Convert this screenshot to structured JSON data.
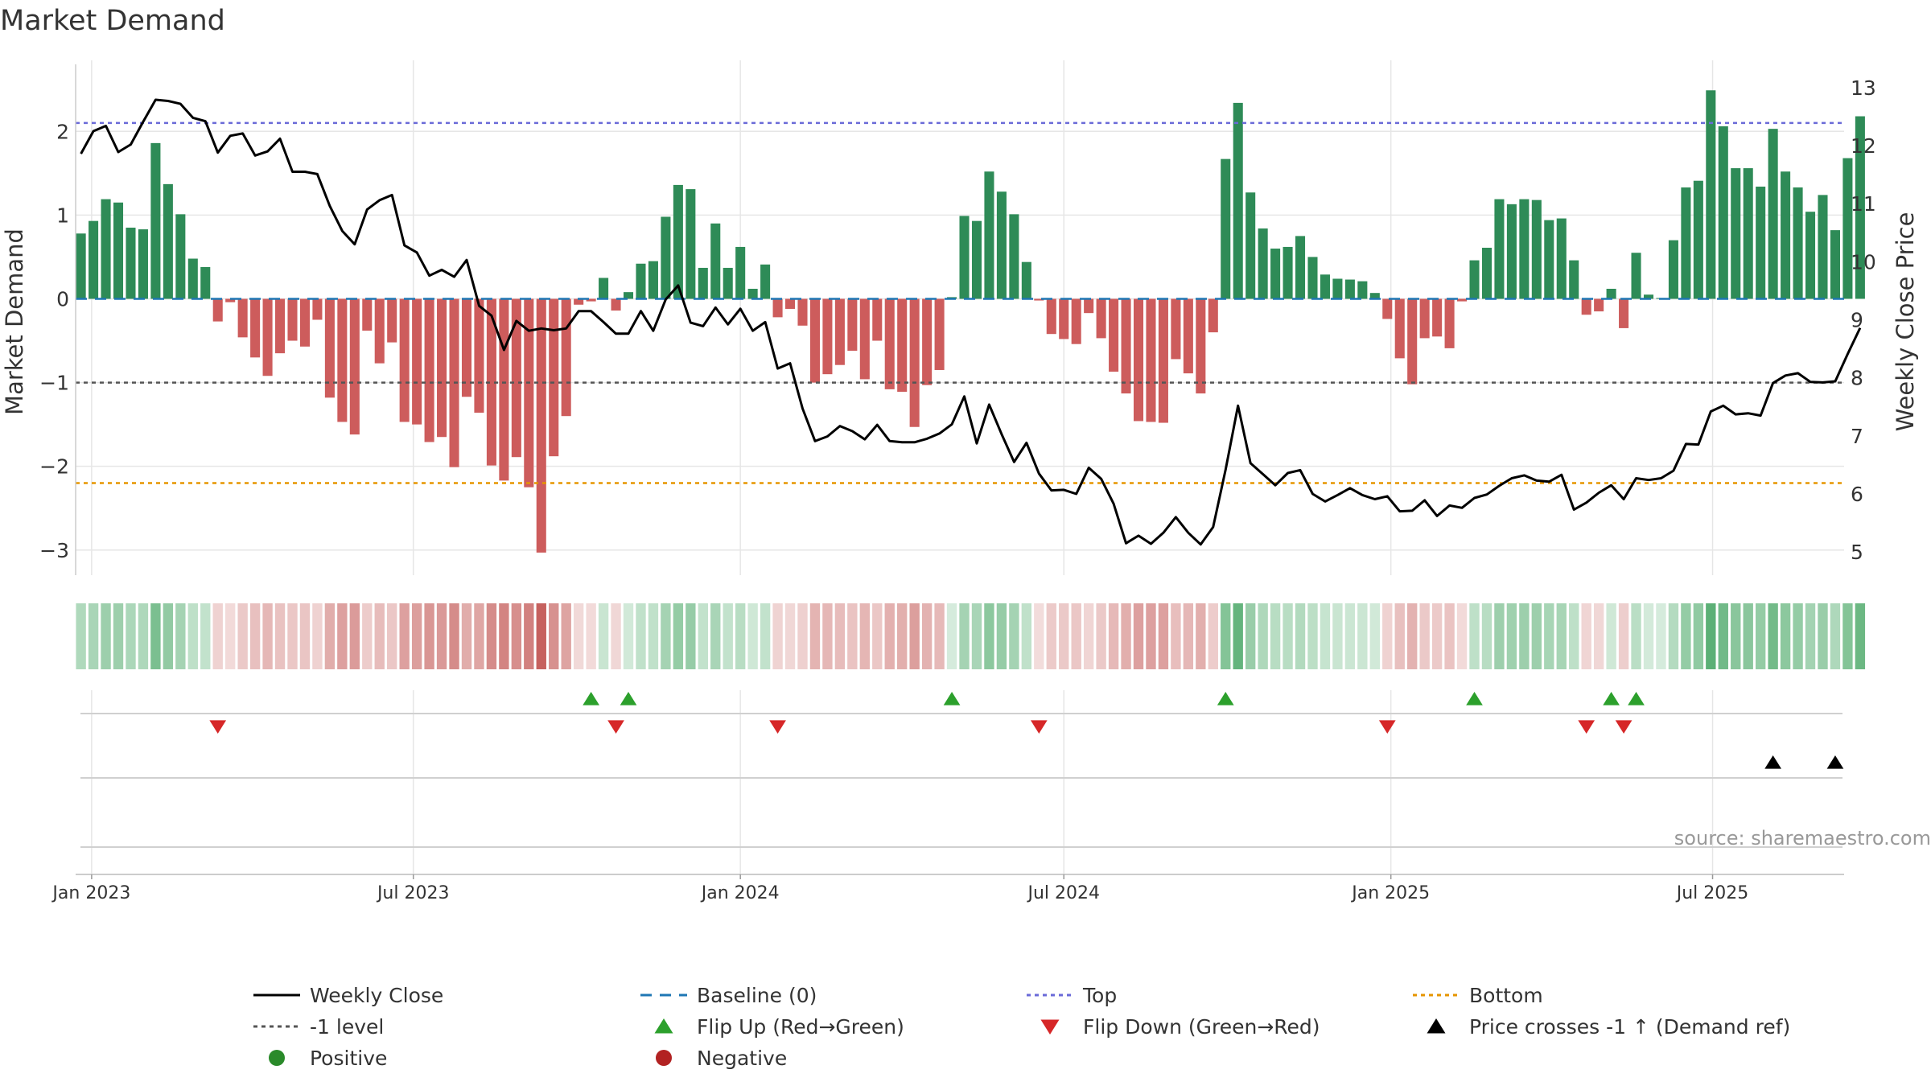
{
  "chart_data": {
    "type": "bar+line",
    "title": "Market Demand",
    "ylabel_left": "Market Demand",
    "ylabel_right": "Weekly Close Price",
    "ylim_left": [
      -3.3,
      2.8
    ],
    "ylim_right": [
      4.6,
      13.4
    ],
    "yticks_left": [
      2,
      1,
      0,
      -1,
      -2,
      -3
    ],
    "ytick_labels_left": [
      "2",
      "1",
      "0",
      "−1",
      "−2",
      "−3"
    ],
    "yticks_right": [
      13,
      12,
      11,
      10,
      9,
      8,
      7,
      6,
      5
    ],
    "ytick_labels_right": [
      "13",
      "12",
      "11",
      "10",
      "9",
      "8",
      "7",
      "6",
      "5"
    ],
    "x_start": "2022-12-23",
    "x_end": "2025-09-13",
    "week_start": "2022-12-26",
    "xticks": [
      {
        "date": "2023-01-01",
        "label": "Jan 2023"
      },
      {
        "date": "2023-07-01",
        "label": "Jul 2023"
      },
      {
        "date": "2024-01-01",
        "label": "Jan 2024"
      },
      {
        "date": "2024-07-01",
        "label": "Jul 2024"
      },
      {
        "date": "2025-01-01",
        "label": "Jan 2025"
      },
      {
        "date": "2025-07-01",
        "label": "Jul 2025"
      }
    ],
    "reference_lines": {
      "top": 2.1,
      "minus_one": -1,
      "bottom": -2.2,
      "baseline": 0
    },
    "demand": [
      0.78,
      0.93,
      1.19,
      1.15,
      0.85,
      0.83,
      1.86,
      1.37,
      1.01,
      0.48,
      0.38,
      -0.27,
      -0.04,
      -0.46,
      -0.7,
      -0.92,
      -0.65,
      -0.5,
      -0.57,
      -0.25,
      -1.18,
      -1.47,
      -1.62,
      -0.38,
      -0.77,
      -0.52,
      -1.47,
      -1.5,
      -1.71,
      -1.65,
      -2.01,
      -1.17,
      -1.36,
      -1.99,
      -2.17,
      -1.89,
      -2.25,
      -3.03,
      -1.88,
      -1.4,
      -0.07,
      -0.03,
      0.25,
      -0.14,
      0.08,
      0.42,
      0.45,
      0.98,
      1.36,
      1.31,
      0.37,
      0.9,
      0.37,
      0.62,
      0.12,
      0.41,
      -0.22,
      -0.12,
      -0.32,
      -1.0,
      -0.9,
      -0.79,
      -0.62,
      -0.96,
      -0.5,
      -1.08,
      -1.11,
      -1.53,
      -1.03,
      -0.85,
      0.02,
      0.99,
      0.93,
      1.52,
      1.28,
      1.01,
      0.44,
      -0.02,
      -0.42,
      -0.48,
      -0.54,
      -0.17,
      -0.47,
      -0.87,
      -1.13,
      -1.46,
      -1.47,
      -1.48,
      -0.72,
      -0.89,
      -1.13,
      -0.4,
      1.67,
      2.34,
      1.27,
      0.84,
      0.6,
      0.62,
      0.75,
      0.5,
      0.29,
      0.24,
      0.23,
      0.21,
      0.07,
      -0.24,
      -0.71,
      -1.02,
      -0.47,
      -0.45,
      -0.59,
      -0.03,
      0.46,
      0.61,
      1.19,
      1.13,
      1.19,
      1.18,
      0.94,
      0.96,
      0.46,
      -0.19,
      -0.15,
      0.12,
      -0.35,
      0.55,
      0.05,
      0.01,
      0.7,
      1.33,
      1.41,
      2.49,
      2.06,
      1.56,
      1.56,
      1.34,
      2.03,
      1.52,
      1.33,
      1.04,
      1.24,
      0.82,
      1.68,
      2.18
    ],
    "weekly_close": [
      11.86,
      12.25,
      12.34,
      11.89,
      12.02,
      12.41,
      12.79,
      12.77,
      12.72,
      12.48,
      12.42,
      11.88,
      12.17,
      12.21,
      11.83,
      11.9,
      12.12,
      11.55,
      11.55,
      11.51,
      10.96,
      10.53,
      10.3,
      10.9,
      11.06,
      11.15,
      10.28,
      10.16,
      9.76,
      9.86,
      9.74,
      10.03,
      9.24,
      9.07,
      8.48,
      8.98,
      8.81,
      8.85,
      8.82,
      8.85,
      9.15,
      9.15,
      8.96,
      8.76,
      8.76,
      9.15,
      8.81,
      9.35,
      9.59,
      8.95,
      8.89,
      9.21,
      8.92,
      9.19,
      8.81,
      8.96,
      8.16,
      8.25,
      7.47,
      6.91,
      6.99,
      7.17,
      7.08,
      6.94,
      7.19,
      6.91,
      6.89,
      6.89,
      6.95,
      7.04,
      7.2,
      7.68,
      6.87,
      7.54,
      7.03,
      6.55,
      6.88,
      6.35,
      6.06,
      6.07,
      6.0,
      6.45,
      6.26,
      5.83,
      5.15,
      5.28,
      5.14,
      5.33,
      5.6,
      5.33,
      5.13,
      5.43,
      6.42,
      7.52,
      6.53,
      6.34,
      6.15,
      6.36,
      6.41,
      6.0,
      5.87,
      5.98,
      6.1,
      5.98,
      5.91,
      5.96,
      5.7,
      5.71,
      5.89,
      5.62,
      5.8,
      5.76,
      5.93,
      5.99,
      6.14,
      6.27,
      6.32,
      6.23,
      6.21,
      6.33,
      5.73,
      5.85,
      6.02,
      6.15,
      5.91,
      6.27,
      6.24,
      6.27,
      6.4,
      6.86,
      6.85,
      7.42,
      7.52,
      7.37,
      7.39,
      7.35,
      7.91,
      8.04,
      8.08,
      7.93,
      7.92,
      7.94,
      8.41,
      8.86
    ],
    "flip_up_weeks": [
      41,
      44,
      70,
      92,
      112,
      123,
      125
    ],
    "flip_down_weeks": [
      11,
      43,
      56,
      77,
      105,
      121,
      124
    ],
    "price_cross_weeks": [
      136,
      141
    ],
    "legend": [
      {
        "label": "Weekly Close",
        "marker": "solid-line",
        "color": "#000000"
      },
      {
        "label": "Baseline (0)",
        "marker": "dashed-line",
        "color": "#1f77b4"
      },
      {
        "label": "Top",
        "marker": "dotted-line",
        "color": "#6a6ad8"
      },
      {
        "label": "Bottom",
        "marker": "dotted-line",
        "color": "#e69500"
      },
      {
        "label": "-1 level",
        "marker": "dotted-line",
        "color": "#555555"
      },
      {
        "label": "Flip Up (Red→Green)",
        "marker": "triangle-up",
        "color": "#2ca02c"
      },
      {
        "label": "Flip Down (Green→Red)",
        "marker": "triangle-down",
        "color": "#d62728"
      },
      {
        "label": "Price crosses -1 ↑ (Demand ref)",
        "marker": "triangle-up",
        "color": "#000000"
      },
      {
        "label": "Positive",
        "marker": "circle",
        "color": "#2a8a2a"
      },
      {
        "label": "Negative",
        "marker": "circle",
        "color": "#b22222"
      }
    ],
    "source": "source: sharemaestro.com",
    "colors": {
      "positive_bar": "#2e8b57",
      "negative_bar": "#cd5c5c",
      "heat_positive": "#2e9a4f",
      "heat_negative": "#c0504d",
      "top": "#6a6ad8",
      "bottom": "#e69500",
      "minus_one": "#555555",
      "baseline": "#1f77b4",
      "flip_up": "#2ca02c",
      "flip_down": "#d62728",
      "price_cross": "#000000",
      "grid": "#e6e6e6",
      "axis": "#cccccc",
      "text": "#333333"
    }
  }
}
